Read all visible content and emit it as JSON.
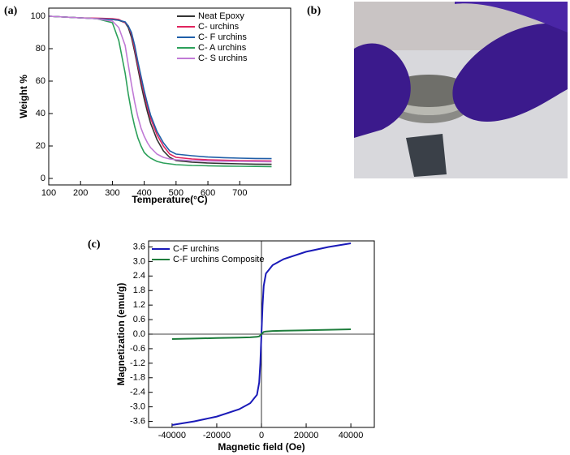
{
  "chart_data": [
    {
      "type": "line",
      "panel_label": "(a)",
      "x_label": "Temperature(°C)",
      "y_label": "Weight %",
      "xlim": [
        100,
        860
      ],
      "ylim": [
        -4,
        105
      ],
      "xticks": [
        100,
        200,
        300,
        400,
        500,
        600,
        700
      ],
      "yticks": [
        0,
        20,
        40,
        60,
        80,
        100
      ],
      "legend": "upper right",
      "x": [
        100,
        150,
        200,
        250,
        300,
        320,
        340,
        350,
        360,
        370,
        380,
        390,
        400,
        410,
        420,
        440,
        460,
        480,
        500,
        550,
        600,
        650,
        700,
        750,
        800
      ],
      "series": [
        {
          "name": "Neat Epoxy",
          "color": "#333333",
          "values": [
            100,
            99.5,
            99,
            98.5,
            98,
            97.5,
            96,
            93,
            87,
            78,
            68,
            58,
            49,
            41,
            34,
            24,
            17,
            13,
            11,
            10,
            9.5,
            9.2,
            9,
            8.8,
            8.7
          ]
        },
        {
          "name": "C- urchins",
          "color": "#e0245e",
          "values": [
            100,
            99.5,
            99,
            98.8,
            98.5,
            98,
            96,
            94,
            89,
            80,
            70,
            61,
            52,
            44,
            37,
            27,
            20,
            15,
            13,
            12,
            11.5,
            11.2,
            11,
            10.9,
            10.8
          ]
        },
        {
          "name": "C- F urchins",
          "color": "#1f5fa8",
          "values": [
            100,
            99.5,
            99,
            98.5,
            98,
            97.5,
            96.5,
            94,
            90,
            82,
            72,
            63,
            54,
            46,
            39,
            29,
            22,
            17,
            15,
            14,
            13.2,
            12.8,
            12.5,
            12.3,
            12.2
          ]
        },
        {
          "name": "C- A urchins",
          "color": "#2ca05a",
          "values": [
            100,
            99.5,
            99,
            98.5,
            96,
            85,
            65,
            52,
            41,
            32,
            25,
            20,
            16,
            14,
            12.5,
            10.5,
            9.5,
            9,
            8.5,
            8,
            7.8,
            7.6,
            7.5,
            7.4,
            7.3
          ]
        },
        {
          "name": "C- S urchins",
          "color": "#c07ad6",
          "values": [
            100,
            99.5,
            99,
            98.5,
            97,
            93,
            82,
            70,
            58,
            47,
            38,
            31,
            26,
            22,
            19,
            15,
            13,
            12,
            11.5,
            11,
            10.8,
            10.6,
            10.5,
            10.4,
            10.3
          ]
        }
      ]
    },
    {
      "type": "line",
      "panel_label": "(c)",
      "x_label": "Magnetic field (Oe)",
      "y_label": "Magnetization (emu/g)",
      "xlim": [
        -50500,
        50500
      ],
      "ylim": [
        -3.85,
        3.85
      ],
      "xticks": [
        -40000,
        -20000,
        0,
        20000,
        40000
      ],
      "yticks": [
        3.6,
        {
          "value": 3,
          "label": "3.0"
        },
        2.4,
        1.8,
        1.2,
        0.6,
        {
          "value": 0,
          "label": "0.0"
        },
        -0.6,
        -1.2,
        -1.8,
        -2.4,
        {
          "value": -3,
          "label": "-3.0"
        },
        -3.6
      ],
      "legend": "upper left",
      "zero_lines": true,
      "x": [
        -40000,
        -30000,
        -20000,
        -10000,
        -5000,
        -2000,
        -1000,
        -500,
        0,
        500,
        1000,
        2000,
        5000,
        10000,
        20000,
        30000,
        40000
      ],
      "series": [
        {
          "name": "C-F urchins",
          "color": "#1a1ab8",
          "values": [
            -3.75,
            -3.6,
            -3.4,
            -3.1,
            -2.85,
            -2.5,
            -2.0,
            -1.2,
            0,
            1.2,
            2.0,
            2.5,
            2.85,
            3.1,
            3.4,
            3.6,
            3.75
          ]
        },
        {
          "name": "C-F urchins Composite",
          "color": "#1e7d3c",
          "values": [
            -0.2,
            -0.18,
            -0.16,
            -0.14,
            -0.13,
            -0.11,
            -0.09,
            -0.05,
            0,
            0.05,
            0.09,
            0.11,
            0.13,
            0.14,
            0.16,
            0.18,
            0.2
          ]
        }
      ]
    }
  ],
  "photo": {
    "panel_label": "(b)"
  }
}
